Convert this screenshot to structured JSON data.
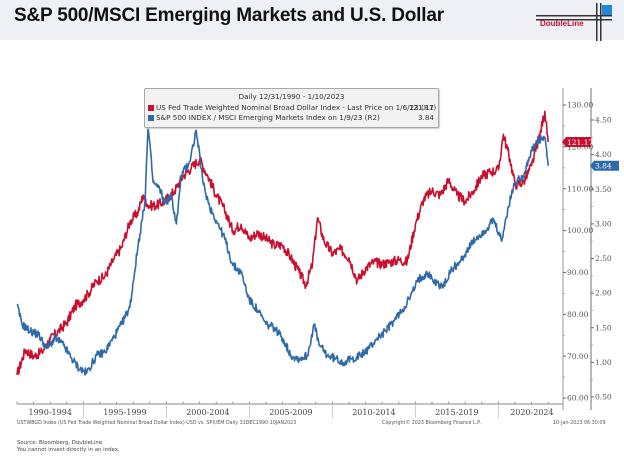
{
  "header": {
    "title": "S&P 500/MSCI Emerging Markets and U.S. Dollar",
    "logo_text": "DoubleLine",
    "brand_color": "#c8102e"
  },
  "legend": {
    "title": "Daily 12/31/1990 - 1/10/2023",
    "items": [
      {
        "label": "US Fed Trade Weighted Nominal Broad Dollar Index - Last Price on 1/6/23 (R1)",
        "value": "121.17",
        "color": "#c8102e"
      },
      {
        "label": "S&P 500 INDEX / MSCI Emerging Markets Index on 1/9/23 (R2)",
        "value": "3.84",
        "color": "#2e6aa8"
      }
    ]
  },
  "footer": {
    "ticker_line": "USTWBGD Index (US Fed Trade Weighted Nominal Broad Dollar Index) USD vs. SPX/EM  Daily 31DEC1990-10JAN2023",
    "copyright": "Copyright© 2023 Bloomberg Finance L.P.",
    "timestamp": "10-Jan-2023 06:30:09",
    "source": "Source: Bloomberg, DoubleLine",
    "disclaimer": "You cannot invest directly in an index."
  },
  "chart_data": {
    "type": "line",
    "title": "S&P 500/MSCI Emerging Markets and U.S. Dollar",
    "subtitle": "Daily 12/31/1990 - 1/10/2023",
    "xlabel": "",
    "x_categories": [
      "1990-1994",
      "1995-1999",
      "2000-2004",
      "2005-2009",
      "2010-2014",
      "2015-2019",
      "2020-2024"
    ],
    "xlim": [
      1991.0,
      2024.7
    ],
    "grid": false,
    "legend_position": "top-center",
    "axes": {
      "R1": {
        "ylim": [
          58,
          132
        ],
        "ticks": [
          60,
          70,
          80,
          90,
          100,
          110,
          120,
          130
        ],
        "tick_labels": [
          "60.00",
          "70.00",
          "80.00",
          "90.00",
          "100.00",
          "110.00",
          "120.00",
          "130.00"
        ]
      },
      "R2": {
        "ylim": [
          0.45,
          4.75
        ],
        "ticks": [
          0.5,
          1.0,
          1.5,
          2.0,
          2.5,
          3.0,
          3.5,
          4.0,
          4.5
        ],
        "tick_labels": [
          "0.50",
          "1.00",
          "1.50",
          "2.00",
          "2.50",
          "3.00",
          "3.50",
          "4.00",
          "4.50"
        ]
      }
    },
    "series": [
      {
        "name": "US Fed Trade Weighted Nominal Broad Dollar Index",
        "axis": "R1",
        "color": "#c8102e",
        "last_value": "121.17",
        "x": [
          1991.0,
          1991.5,
          1992.0,
          1992.5,
          1993.0,
          1993.5,
          1994.0,
          1994.5,
          1995.0,
          1995.3,
          1995.8,
          1996.3,
          1996.8,
          1997.3,
          1997.8,
          1998.3,
          1998.6,
          1998.9,
          1999.4,
          1999.9,
          2000.5,
          2001.0,
          2001.5,
          2002.0,
          2002.5,
          2003.0,
          2003.5,
          2004.0,
          2004.5,
          2005.0,
          2005.5,
          2006.0,
          2006.5,
          2007.0,
          2007.5,
          2008.0,
          2008.4,
          2008.8,
          2009.1,
          2009.5,
          2010.0,
          2010.5,
          2011.0,
          2011.5,
          2012.0,
          2012.5,
          2013.0,
          2013.5,
          2014.0,
          2014.5,
          2015.0,
          2015.5,
          2016.0,
          2016.5,
          2017.0,
          2017.5,
          2018.0,
          2018.5,
          2019.0,
          2019.5,
          2020.0,
          2020.3,
          2020.7,
          2021.0,
          2021.5,
          2022.0,
          2022.5,
          2022.8,
          2023.0
        ],
        "values": [
          65.5,
          71.5,
          70,
          71,
          74,
          76,
          78,
          82,
          83.5,
          85,
          88,
          89,
          93,
          96,
          102,
          104.5,
          108.5,
          106,
          106,
          107,
          109.5,
          113,
          115,
          117,
          113,
          108.5,
          105,
          100,
          101.5,
          98,
          99.5,
          98,
          96.5,
          96.5,
          93.5,
          90,
          87,
          92,
          103,
          97.5,
          94.5,
          95.5,
          93.5,
          88,
          91,
          92.5,
          92,
          92.5,
          93,
          92.5,
          101.5,
          107.5,
          109.5,
          108.5,
          112,
          108.5,
          107,
          109.5,
          113,
          114,
          114.5,
          123,
          117,
          111,
          111.5,
          115.5,
          123,
          128.5,
          121.17
        ]
      },
      {
        "name": "S&P 500 INDEX / MSCI Emerging Markets Index",
        "axis": "R2",
        "color": "#2e6aa8",
        "last_value": "3.84",
        "x": [
          1991.0,
          1991.3,
          1991.8,
          1992.3,
          1992.8,
          1993.3,
          1993.8,
          1994.3,
          1994.8,
          1995.2,
          1995.8,
          1996.3,
          1996.8,
          1997.3,
          1997.8,
          1998.3,
          1998.7,
          1998.9,
          1999.2,
          1999.6,
          1999.9,
          2000.3,
          2000.6,
          2000.9,
          2001.4,
          2001.8,
          2002.2,
          2002.6,
          2003.0,
          2003.5,
          2004.0,
          2004.5,
          2005.0,
          2005.5,
          2006.0,
          2006.5,
          2007.0,
          2007.5,
          2008.0,
          2008.5,
          2008.9,
          2009.2,
          2009.7,
          2010.2,
          2010.7,
          2011.2,
          2011.7,
          2012.2,
          2012.7,
          2013.2,
          2013.7,
          2014.2,
          2014.7,
          2015.2,
          2015.7,
          2016.2,
          2016.7,
          2017.2,
          2017.7,
          2018.2,
          2018.7,
          2019.2,
          2019.7,
          2020.2,
          2020.6,
          2021.0,
          2021.5,
          2022.0,
          2022.4,
          2022.8,
          2023.0
        ],
        "values": [
          1.83,
          1.55,
          1.45,
          1.4,
          1.2,
          1.35,
          1.25,
          1.05,
          0.9,
          0.85,
          1.1,
          1.15,
          1.35,
          1.55,
          1.8,
          2.7,
          3.3,
          4.4,
          3.6,
          3.5,
          3.3,
          3.4,
          3.0,
          3.7,
          3.9,
          4.35,
          3.6,
          3.25,
          3.05,
          2.8,
          2.4,
          2.3,
          1.9,
          1.75,
          1.55,
          1.5,
          1.35,
          1.1,
          1.05,
          1.1,
          1.55,
          1.25,
          1.1,
          1.05,
          1.0,
          1.05,
          1.1,
          1.2,
          1.35,
          1.45,
          1.6,
          1.75,
          1.95,
          2.2,
          2.3,
          2.15,
          2.1,
          2.35,
          2.45,
          2.65,
          2.8,
          2.9,
          3.05,
          2.75,
          3.25,
          3.6,
          3.7,
          4.05,
          4.2,
          4.25,
          3.84
        ]
      }
    ]
  }
}
